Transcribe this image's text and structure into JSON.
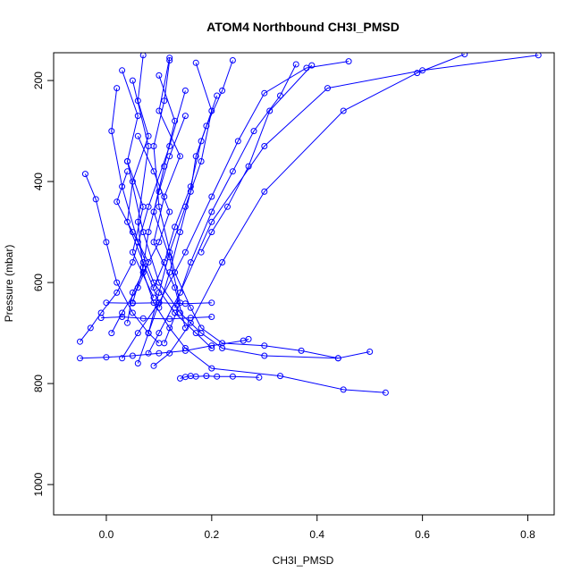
{
  "chart_data": {
    "type": "line",
    "title": "ATOM4 Northbound CH3I_PMSD",
    "xlabel": "CH3I_PMSD",
    "ylabel": "Pressure (mbar)",
    "xlim": [
      -0.1,
      0.85
    ],
    "ylim": [
      1060,
      145
    ],
    "y_reversed": true,
    "x_ticks": [
      0.0,
      0.2,
      0.4,
      0.6,
      0.8
    ],
    "x_tick_labels": [
      "0.0",
      "0.2",
      "0.4",
      "0.6",
      "0.8"
    ],
    "y_ticks": [
      200,
      400,
      600,
      800,
      1000
    ],
    "y_tick_labels": [
      "200",
      "400",
      "600",
      "800",
      "1000"
    ],
    "line_color": "#0000ff",
    "marker": "open-circle",
    "grid": false,
    "legend": "none",
    "series": [
      {
        "x": [
          0.53,
          0.45,
          0.33,
          0.2,
          0.15,
          0.12,
          0.09,
          0.07,
          0.06,
          0.08,
          0.05
        ],
        "y": [
          818,
          812,
          785,
          770,
          730,
          690,
          640,
          580,
          480,
          330,
          200
        ]
      },
      {
        "x": [
          0.5,
          0.44,
          0.3,
          0.22,
          0.18,
          0.14,
          0.1,
          0.07,
          0.04
        ],
        "y": [
          737,
          750,
          745,
          730,
          700,
          660,
          600,
          500,
          360
        ]
      },
      {
        "x": [
          0.44,
          0.37,
          0.3,
          0.22,
          0.18,
          0.16,
          0.13,
          0.1,
          0.09,
          0.11,
          0.12
        ],
        "y": [
          750,
          735,
          725,
          720,
          690,
          650,
          580,
          450,
          330,
          240,
          160
        ]
      },
      {
        "x": [
          0.29,
          0.24,
          0.21,
          0.19,
          0.17,
          0.16,
          0.15,
          0.14
        ],
        "y": [
          788,
          786,
          786,
          785,
          786,
          785,
          787,
          790
        ]
      },
      {
        "x": [
          0.68,
          0.59,
          0.45,
          0.3,
          0.22,
          0.16,
          0.12,
          0.09
        ],
        "y": [
          148,
          185,
          260,
          420,
          560,
          680,
          740,
          765
        ]
      },
      {
        "x": [
          0.82,
          0.6,
          0.42,
          0.3,
          0.2,
          0.14,
          0.1,
          0.08
        ],
        "y": [
          150,
          180,
          215,
          330,
          480,
          620,
          700,
          740
        ]
      },
      {
        "x": [
          0.46,
          0.38,
          0.3,
          0.25,
          0.2,
          0.15,
          0.1,
          0.06,
          0.03
        ],
        "y": [
          162,
          175,
          225,
          320,
          430,
          540,
          640,
          700,
          750
        ]
      },
      {
        "x": [
          -0.04,
          -0.02,
          0.0,
          0.02,
          0.05,
          0.08,
          0.1
        ],
        "y": [
          385,
          435,
          520,
          600,
          660,
          700,
          720
        ]
      },
      {
        "x": [
          -0.05,
          -0.03,
          -0.01,
          0.02,
          0.05,
          0.08,
          0.12,
          0.15
        ],
        "y": [
          717,
          690,
          660,
          620,
          560,
          450,
          330,
          220
        ]
      },
      {
        "x": [
          -0.05,
          0.0,
          0.05,
          0.1,
          0.15,
          0.2,
          0.26,
          0.27
        ],
        "y": [
          750,
          748,
          745,
          740,
          735,
          725,
          715,
          712
        ]
      },
      {
        "x": [
          -0.01,
          0.03,
          0.07,
          0.12,
          0.16,
          0.2
        ],
        "y": [
          670,
          668,
          671,
          672,
          670,
          668
        ]
      },
      {
        "x": [
          0.0,
          0.05,
          0.1,
          0.15,
          0.2
        ],
        "y": [
          640,
          641,
          640,
          642,
          640
        ]
      },
      {
        "x": [
          0.02,
          0.01,
          0.03,
          0.06,
          0.09,
          0.13,
          0.17,
          0.2
        ],
        "y": [
          215,
          300,
          410,
          520,
          600,
          660,
          700,
          730
        ]
      },
      {
        "x": [
          0.07,
          0.06,
          0.08,
          0.05,
          0.04,
          0.07,
          0.1,
          0.08
        ],
        "y": [
          150,
          240,
          310,
          400,
          480,
          560,
          640,
          700
        ]
      },
      {
        "x": [
          0.12,
          0.1,
          0.14,
          0.11,
          0.09,
          0.13,
          0.15
        ],
        "y": [
          155,
          260,
          350,
          430,
          520,
          610,
          690
        ]
      },
      {
        "x": [
          0.17,
          0.2,
          0.18,
          0.15,
          0.12,
          0.1,
          0.08,
          0.06
        ],
        "y": [
          165,
          260,
          360,
          450,
          540,
          620,
          700,
          760
        ]
      },
      {
        "x": [
          0.03,
          0.06,
          0.04,
          0.07,
          0.05,
          0.09
        ],
        "y": [
          180,
          270,
          360,
          450,
          540,
          630
        ]
      },
      {
        "x": [
          0.36,
          0.33,
          0.28,
          0.24,
          0.2,
          0.16,
          0.13
        ],
        "y": [
          168,
          230,
          300,
          380,
          460,
          560,
          650
        ]
      },
      {
        "x": [
          0.24,
          0.22,
          0.19,
          0.17,
          0.16,
          0.14,
          0.12,
          0.1
        ],
        "y": [
          160,
          220,
          290,
          350,
          420,
          500,
          580,
          650
        ]
      },
      {
        "x": [
          0.1,
          0.13,
          0.11,
          0.09,
          0.12,
          0.14,
          0.11
        ],
        "y": [
          190,
          280,
          370,
          460,
          550,
          640,
          720
        ]
      },
      {
        "x": [
          0.39,
          0.31,
          0.27,
          0.23,
          0.2,
          0.18
        ],
        "y": [
          170,
          260,
          370,
          450,
          500,
          540
        ]
      },
      {
        "x": [
          0.04,
          0.02,
          0.05,
          0.08,
          0.06,
          0.03,
          0.01
        ],
        "y": [
          380,
          440,
          500,
          560,
          610,
          660,
          700
        ]
      },
      {
        "x": [
          0.15,
          0.12,
          0.1,
          0.08,
          0.07,
          0.05
        ],
        "y": [
          270,
          350,
          420,
          500,
          570,
          640
        ]
      },
      {
        "x": [
          0.06,
          0.09,
          0.12,
          0.1,
          0.07,
          0.05,
          0.04
        ],
        "y": [
          310,
          380,
          460,
          520,
          580,
          620,
          680
        ]
      },
      {
        "x": [
          0.21,
          0.18,
          0.16,
          0.13,
          0.11,
          0.09
        ],
        "y": [
          230,
          320,
          410,
          490,
          560,
          610
        ]
      }
    ]
  }
}
